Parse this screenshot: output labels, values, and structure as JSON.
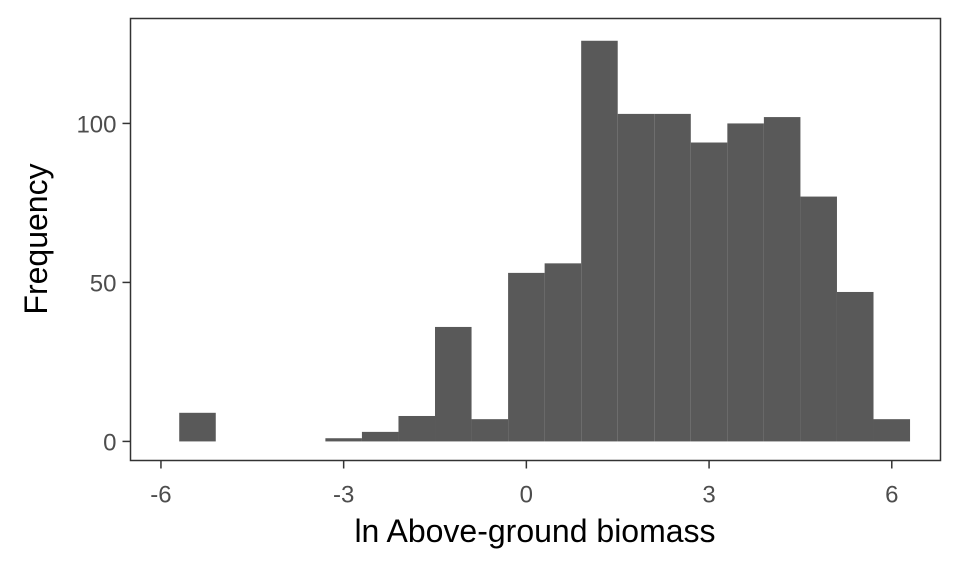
{
  "chart_data": {
    "type": "bar",
    "subtype": "histogram",
    "xlabel": "ln Above-ground biomass",
    "ylabel": "Frequency",
    "xlim": [
      -6.5,
      6.8
    ],
    "ylim": [
      -6,
      133
    ],
    "x_ticks": [
      -6,
      -3,
      0,
      3,
      6
    ],
    "x_tick_labels": [
      "-6",
      "-3",
      "0",
      "3",
      "6"
    ],
    "y_ticks": [
      0,
      50,
      100
    ],
    "y_tick_labels": [
      "0",
      "50",
      "100"
    ],
    "bin_width": 0.6,
    "bins": [
      {
        "x0": -5.7,
        "x1": -5.1,
        "count": 9
      },
      {
        "x0": -5.1,
        "x1": -4.5,
        "count": 0
      },
      {
        "x0": -4.5,
        "x1": -3.9,
        "count": 0
      },
      {
        "x0": -3.9,
        "x1": -3.3,
        "count": 0
      },
      {
        "x0": -3.3,
        "x1": -2.7,
        "count": 1
      },
      {
        "x0": -2.7,
        "x1": -2.1,
        "count": 3
      },
      {
        "x0": -2.1,
        "x1": -1.5,
        "count": 8
      },
      {
        "x0": -1.5,
        "x1": -0.9,
        "count": 36
      },
      {
        "x0": -0.9,
        "x1": -0.3,
        "count": 7
      },
      {
        "x0": -0.3,
        "x1": 0.3,
        "count": 53
      },
      {
        "x0": 0.3,
        "x1": 0.9,
        "count": 56
      },
      {
        "x0": 0.9,
        "x1": 1.5,
        "count": 126
      },
      {
        "x0": 1.5,
        "x1": 2.1,
        "count": 103
      },
      {
        "x0": 2.1,
        "x1": 2.7,
        "count": 103
      },
      {
        "x0": 2.7,
        "x1": 3.3,
        "count": 94
      },
      {
        "x0": 3.3,
        "x1": 3.9,
        "count": 100
      },
      {
        "x0": 3.9,
        "x1": 4.5,
        "count": 102
      },
      {
        "x0": 4.5,
        "x1": 5.1,
        "count": 77
      },
      {
        "x0": 5.1,
        "x1": 5.7,
        "count": 47
      },
      {
        "x0": 5.7,
        "x1": 6.3,
        "count": 7
      }
    ],
    "bar_color": "#595959",
    "grid": false,
    "legend": "none"
  }
}
